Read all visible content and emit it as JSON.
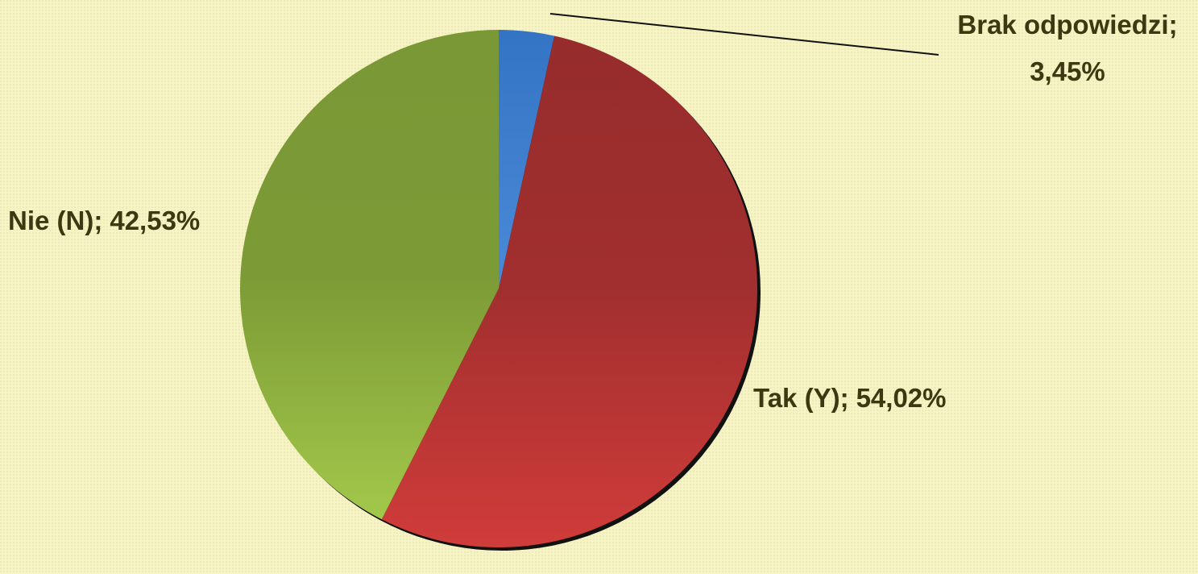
{
  "chart_data": {
    "type": "pie",
    "categories": [
      "Brak odpowiedzi",
      "Tak (Y)",
      "Nie (N)"
    ],
    "values": [
      3.45,
      54.02,
      42.53
    ],
    "value_labels": [
      "3,45%",
      "54,02%",
      "42,53%"
    ],
    "separator": ";",
    "colors": [
      "#3a7ccc",
      "#b83232",
      "#86ad3c"
    ]
  }
}
